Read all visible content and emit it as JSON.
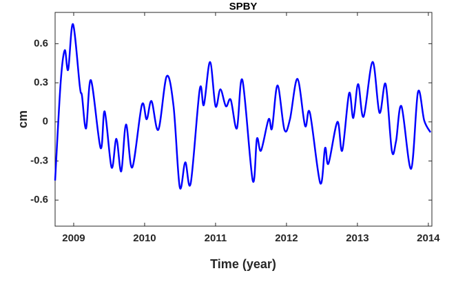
{
  "chart_data": {
    "type": "line",
    "title": "SPBY",
    "xlabel": "Time (year)",
    "ylabel": "cm",
    "x": [
      2008.738,
      2008.816,
      2008.874,
      2008.922,
      2008.99,
      2009.087,
      2009.117,
      2009.175,
      2009.243,
      2009.379,
      2009.437,
      2009.534,
      2009.602,
      2009.67,
      2009.738,
      2009.825,
      2009.961,
      2010.029,
      2010.097,
      2010.194,
      2010.311,
      2010.408,
      2010.495,
      2010.573,
      2010.65,
      2010.777,
      2010.835,
      2010.922,
      2011.0,
      2011.068,
      2011.146,
      2011.214,
      2011.301,
      2011.379,
      2011.524,
      2011.583,
      2011.641,
      2011.748,
      2011.796,
      2011.874,
      2011.971,
      2012.049,
      2012.155,
      2012.262,
      2012.33,
      2012.476,
      2012.544,
      2012.592,
      2012.718,
      2012.786,
      2012.883,
      2012.942,
      2013.01,
      2013.087,
      2013.214,
      2013.311,
      2013.398,
      2013.485,
      2013.544,
      2013.621,
      2013.757,
      2013.854,
      2013.942,
      2014.03
    ],
    "series": [
      {
        "color": "#0000ff",
        "values": [
          -0.45,
          0.3,
          0.55,
          0.4,
          0.75,
          0.27,
          0.2,
          -0.05,
          0.32,
          -0.2,
          0.08,
          -0.35,
          -0.13,
          -0.38,
          -0.02,
          -0.35,
          0.13,
          0.02,
          0.16,
          -0.06,
          0.35,
          0.12,
          -0.5,
          -0.31,
          -0.47,
          0.25,
          0.13,
          0.46,
          0.12,
          0.25,
          0.12,
          0.17,
          -0.05,
          0.32,
          -0.45,
          -0.13,
          -0.22,
          0.02,
          -0.05,
          0.28,
          -0.06,
          0.02,
          0.33,
          -0.03,
          0.07,
          -0.47,
          -0.2,
          -0.32,
          0,
          -0.22,
          0.22,
          0.03,
          0.29,
          0.04,
          0.46,
          0.07,
          0.29,
          -0.22,
          -0.15,
          0.12,
          -0.36,
          0.23,
          0.01,
          -0.08
        ]
      }
    ],
    "xlim": [
      2008.738,
      2014.05
    ],
    "xticks": [
      2009,
      2010,
      2011,
      2012,
      2013,
      2014
    ],
    "ylim": [
      -0.8,
      0.84
    ],
    "yticks": [
      -0.6,
      -0.3,
      0,
      0.3,
      0.6
    ],
    "grid": false
  }
}
